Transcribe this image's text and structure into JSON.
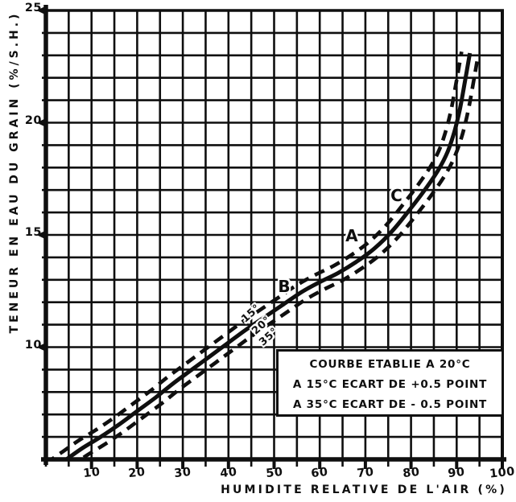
{
  "chart_data": {
    "type": "line",
    "title": "",
    "xlabel": "HUMIDITE RELATIVE DE L'AIR (%)",
    "ylabel": "TENEUR EN EAU DU GRAIN (%/S.H.)",
    "xlim": [
      0,
      100
    ],
    "ylim": [
      5,
      25
    ],
    "x_ticks": [
      10,
      20,
      30,
      40,
      50,
      60,
      70,
      80,
      90,
      100
    ],
    "y_ticks": [
      10,
      15,
      20,
      25
    ],
    "grid": {
      "x_step": 5,
      "y_step": 1,
      "style": "full black graph-paper grid"
    },
    "colors": {
      "ink": "#0f0f0f",
      "paper": "#ffffff"
    },
    "series": [
      {
        "name": "Courbe etablie a 20°C",
        "temperature": "20°C",
        "style": "solid",
        "points": [
          [
            4.5,
            5.0
          ],
          [
            8,
            5.5
          ],
          [
            12,
            6.0
          ],
          [
            16,
            6.55
          ],
          [
            20,
            7.15
          ],
          [
            24,
            7.75
          ],
          [
            28,
            8.4
          ],
          [
            32,
            9.0
          ],
          [
            36,
            9.6
          ],
          [
            40,
            10.2
          ],
          [
            44,
            10.8
          ],
          [
            48,
            11.35
          ],
          [
            52,
            11.9
          ],
          [
            56,
            12.45
          ],
          [
            60,
            12.9
          ],
          [
            64,
            13.3
          ],
          [
            68,
            13.8
          ],
          [
            72,
            14.4
          ],
          [
            76,
            15.2
          ],
          [
            80,
            16.2
          ],
          [
            83,
            17.0
          ],
          [
            86,
            17.9
          ],
          [
            88,
            18.7
          ],
          [
            89.5,
            19.6
          ],
          [
            90.7,
            20.6
          ],
          [
            91.7,
            21.7
          ],
          [
            92.9,
            23.1
          ]
        ]
      },
      {
        "name": "Courbe a 15°C : ecart de +0.5 point",
        "temperature": "15°C",
        "style": "dashed",
        "ecart_point": 0.5
      },
      {
        "name": "Courbe a 35°C : ecart de -0.5 point",
        "temperature": "35°C",
        "style": "dashed",
        "ecart_point": -0.5
      }
    ],
    "annotations": {
      "points": [
        {
          "text": "A",
          "x": 67.0,
          "y": 14.95
        },
        {
          "text": "B",
          "x": 52.2,
          "y": 12.7
        },
        {
          "text": "C",
          "x": 76.8,
          "y": 16.75
        }
      ],
      "curve_labels": [
        {
          "text": "15°",
          "x": 44.9,
          "y": 11.5,
          "rotation": -42
        },
        {
          "text": "20°",
          "x": 47.2,
          "y": 10.95,
          "rotation": -42
        },
        {
          "text": "35°",
          "x": 48.8,
          "y": 10.45,
          "rotation": -42
        }
      ]
    },
    "legend_box": {
      "lines": [
        "COURBE ETABLIE A 20°C",
        "A 15°C ECART DE +0.5 POINT",
        "A 35°C ECART DE - 0.5 POINT"
      ]
    }
  }
}
